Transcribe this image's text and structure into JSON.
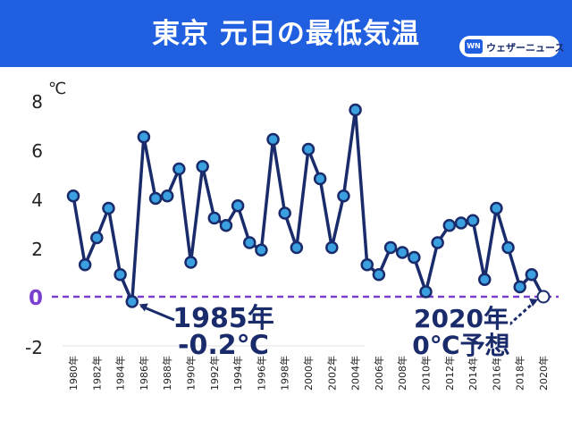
{
  "header": {
    "title": "東京 元日の最低気温",
    "logo_text": "ウェザーニュース",
    "logo_mark": "WN"
  },
  "colors": {
    "banner": "#1f5fe0",
    "line": "#1a2b6b",
    "marker_fill": "#3aa0e0",
    "zero_line": "#7b3fd0",
    "forecast_marker": "#ffffff"
  },
  "chart_data": {
    "type": "line",
    "title": "東京 元日の最低気温",
    "unit_label": "℃",
    "ylim": [
      -2,
      8
    ],
    "y_ticks": [
      "-2",
      "0",
      "2",
      "4",
      "6",
      "8"
    ],
    "x_tick_labels": [
      "1980年",
      "1982年",
      "1984年",
      "1986年",
      "1988年",
      "1990年",
      "1992年",
      "1994年",
      "1996年",
      "1998年",
      "2000年",
      "2002年",
      "2004年",
      "2006年",
      "2008年",
      "2010年",
      "2012年",
      "2014年",
      "2016年",
      "2018年",
      "2020年"
    ],
    "grid": false,
    "series": [
      {
        "x": [
          1980,
          1981,
          1982,
          1983,
          1984,
          1985,
          1986,
          1987,
          1988,
          1989,
          1990,
          1991,
          1992,
          1993,
          1994,
          1995,
          1996,
          1997,
          1998,
          1999,
          2000,
          2001,
          2002,
          2003,
          2004,
          2005,
          2006,
          2007,
          2008,
          2009,
          2010,
          2011,
          2012,
          2013,
          2014,
          2015,
          2016,
          2017,
          2018,
          2019
        ],
        "values": [
          4.1,
          1.3,
          2.4,
          3.6,
          0.9,
          -0.2,
          6.5,
          4.0,
          4.1,
          5.2,
          1.4,
          5.3,
          3.2,
          2.9,
          3.7,
          2.2,
          1.9,
          6.4,
          3.4,
          2.0,
          6.0,
          4.8,
          2.0,
          4.1,
          7.6,
          1.3,
          0.9,
          2.0,
          1.8,
          1.6,
          0.2,
          2.2,
          2.9,
          3.0,
          3.1,
          0.7,
          3.6,
          2.0,
          0.4,
          0.9
        ]
      }
    ],
    "forecast": {
      "x": 2020,
      "value": 0
    },
    "annotations": [
      {
        "lines": [
          "1985年",
          "-0.2℃"
        ]
      },
      {
        "lines": [
          "2020年",
          "0℃予想"
        ]
      }
    ]
  }
}
